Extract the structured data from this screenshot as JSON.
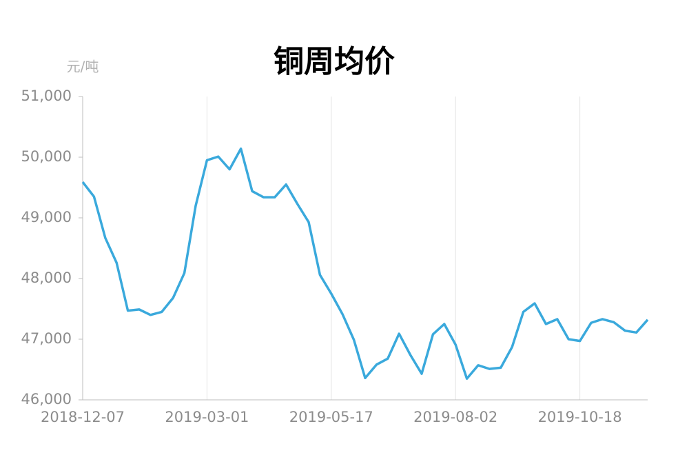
{
  "chart_data": {
    "type": "line",
    "title": "铜周均价",
    "y_unit_label": "元/吨",
    "categories": [
      "2018-12-07",
      null,
      null,
      null,
      null,
      null,
      null,
      null,
      null,
      null,
      null,
      "2019-03-01",
      null,
      null,
      null,
      null,
      null,
      null,
      null,
      null,
      null,
      null,
      "2019-05-17",
      null,
      null,
      null,
      null,
      null,
      null,
      null,
      null,
      null,
      null,
      "2019-08-02",
      null,
      null,
      null,
      null,
      null,
      null,
      null,
      null,
      null,
      null,
      "2019-10-18",
      null,
      null,
      null,
      null,
      null,
      null
    ],
    "series": [
      {
        "name": "铜周均价",
        "color": "#3aa9dc",
        "values": [
          49590,
          49350,
          48670,
          48260,
          47470,
          47490,
          47400,
          47450,
          47680,
          48090,
          49200,
          49950,
          50010,
          49800,
          50140,
          49440,
          49340,
          49340,
          49550,
          49230,
          48930,
          48060,
          47750,
          47410,
          46990,
          46360,
          46580,
          46680,
          47090,
          46740,
          46430,
          47080,
          47250,
          46910,
          46350,
          46570,
          46510,
          46530,
          46870,
          47450,
          47590,
          47250,
          47330,
          47000,
          46970,
          47270,
          47330,
          47280,
          47140,
          47110,
          47320
        ]
      }
    ],
    "ylim": [
      46000,
      51000
    ],
    "yticks": [
      {
        "value": 46000,
        "label": "46,000"
      },
      {
        "value": 47000,
        "label": "47,000"
      },
      {
        "value": 48000,
        "label": "48,000"
      },
      {
        "value": 49000,
        "label": "49,000"
      },
      {
        "value": 50000,
        "label": "50,000"
      },
      {
        "value": 51000,
        "label": "51,000"
      }
    ],
    "grid": "x"
  }
}
